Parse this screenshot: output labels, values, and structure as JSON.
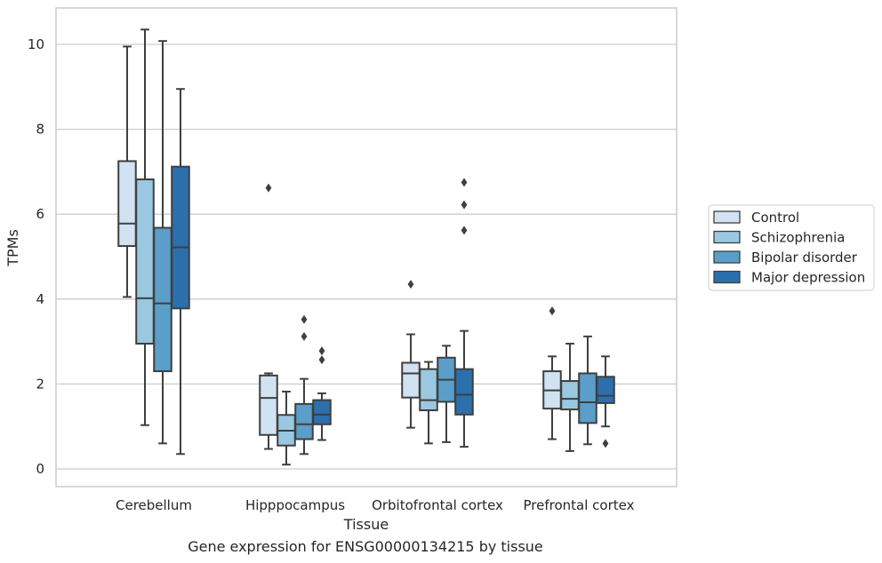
{
  "chart_data": {
    "type": "boxplot",
    "title": "",
    "xlabel": "Tissue",
    "ylabel": "TPMs",
    "ylim": [
      -0.4,
      10.8
    ],
    "yticks": [
      0,
      2,
      4,
      6,
      8,
      10
    ],
    "grid": "horizontal",
    "legend_position": "right",
    "categories": [
      "Cerebellum",
      "Hipppocampus",
      "Orbitofrontal cortex",
      "Prefrontal cortex"
    ],
    "series": [
      {
        "name": "Control",
        "color": "#d1e2f2",
        "boxes": [
          {
            "whisker_low": 4.05,
            "q1": 5.25,
            "median": 5.78,
            "q3": 7.25,
            "whisker_high": 9.95,
            "outliers": []
          },
          {
            "whisker_low": 0.47,
            "q1": 0.8,
            "median": 1.67,
            "q3": 2.2,
            "whisker_high": 2.25,
            "outliers": [
              6.62
            ]
          },
          {
            "whisker_low": 0.97,
            "q1": 1.68,
            "median": 2.25,
            "q3": 2.5,
            "whisker_high": 3.17,
            "outliers": [
              4.35
            ]
          },
          {
            "whisker_low": 0.7,
            "q1": 1.42,
            "median": 1.85,
            "q3": 2.3,
            "whisker_high": 2.65,
            "outliers": [
              3.72
            ]
          }
        ]
      },
      {
        "name": "Schizophrenia",
        "color": "#9ac8e0",
        "boxes": [
          {
            "whisker_low": 1.03,
            "q1": 2.95,
            "median": 4.02,
            "q3": 6.82,
            "whisker_high": 10.35,
            "outliers": []
          },
          {
            "whisker_low": 0.1,
            "q1": 0.55,
            "median": 0.9,
            "q3": 1.27,
            "whisker_high": 1.82,
            "outliers": []
          },
          {
            "whisker_low": 0.6,
            "q1": 1.38,
            "median": 1.62,
            "q3": 2.35,
            "whisker_high": 2.52,
            "outliers": []
          },
          {
            "whisker_low": 0.42,
            "q1": 1.4,
            "median": 1.65,
            "q3": 2.07,
            "whisker_high": 2.95,
            "outliers": []
          }
        ]
      },
      {
        "name": "Bipolar disorder",
        "color": "#5a9ec9",
        "boxes": [
          {
            "whisker_low": 0.6,
            "q1": 2.3,
            "median": 3.9,
            "q3": 5.68,
            "whisker_high": 10.08,
            "outliers": []
          },
          {
            "whisker_low": 0.35,
            "q1": 0.7,
            "median": 1.05,
            "q3": 1.53,
            "whisker_high": 2.12,
            "outliers": [
              3.52,
              3.12
            ]
          },
          {
            "whisker_low": 0.63,
            "q1": 1.58,
            "median": 2.1,
            "q3": 2.62,
            "whisker_high": 2.9,
            "outliers": []
          },
          {
            "whisker_low": 0.58,
            "q1": 1.08,
            "median": 1.57,
            "q3": 2.25,
            "whisker_high": 3.12,
            "outliers": []
          }
        ]
      },
      {
        "name": "Major depression",
        "color": "#2c6fad",
        "boxes": [
          {
            "whisker_low": 0.35,
            "q1": 3.78,
            "median": 5.22,
            "q3": 7.12,
            "whisker_high": 8.95,
            "outliers": []
          },
          {
            "whisker_low": 0.68,
            "q1": 1.05,
            "median": 1.28,
            "q3": 1.62,
            "whisker_high": 1.78,
            "outliers": [
              2.78,
              2.57
            ]
          },
          {
            "whisker_low": 0.52,
            "q1": 1.28,
            "median": 1.75,
            "q3": 2.35,
            "whisker_high": 3.25,
            "outliers": [
              6.75,
              6.22,
              5.62
            ]
          },
          {
            "whisker_low": 1.0,
            "q1": 1.55,
            "median": 1.72,
            "q3": 2.17,
            "whisker_high": 2.65,
            "outliers": [
              0.6
            ]
          }
        ]
      }
    ]
  },
  "caption": "Gene expression for ENSG00000134215 by tissue"
}
